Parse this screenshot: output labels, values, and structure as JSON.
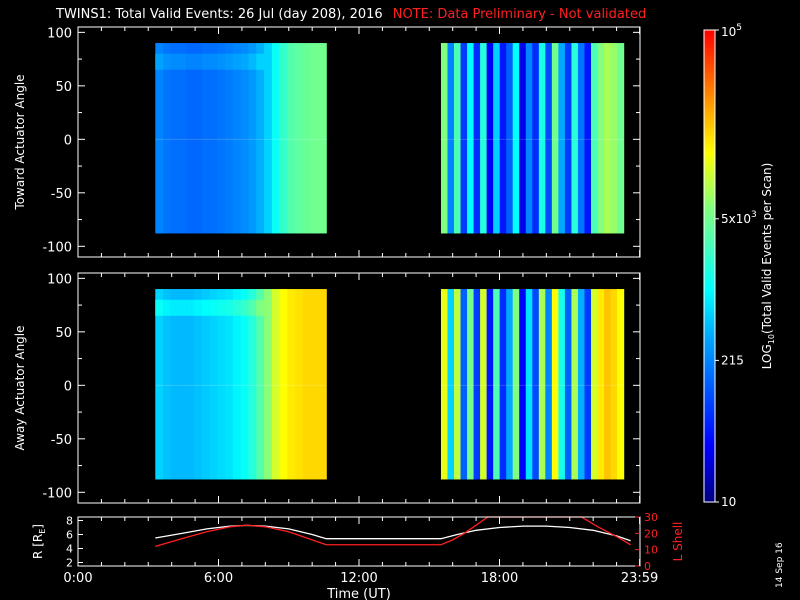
{
  "header": {
    "title": "TWINS1: Total Valid Events: 26 Jul (day 208), 2016",
    "note": "NOTE: Data Preliminary - Not validated"
  },
  "stamp": "14 Sep 16",
  "chart_data": [
    {
      "type": "heatmap",
      "name": "toward",
      "ylabel": "Toward Actuator Angle",
      "ylim": [
        -110,
        105
      ],
      "yticks": [
        100,
        50,
        0,
        -50,
        -100
      ],
      "angle_range": [
        -88,
        90
      ],
      "blocks": [
        {
          "start_hour": 3.3,
          "end_hour": 10.6,
          "levels": [
            0.3,
            0.28,
            0.27,
            0.27,
            0.26,
            0.26,
            0.27,
            0.27,
            0.28,
            0.29,
            0.3,
            0.31,
            0.33,
            0.36,
            0.4,
            0.46,
            0.52,
            0.56,
            0.58,
            0.59,
            0.6,
            0.6
          ],
          "top_band_boost": 0.04
        },
        {
          "start_hour": 15.5,
          "end_hour": 23.3,
          "levels": [
            0.62,
            0.3,
            0.55,
            0.2,
            0.45,
            0.18,
            0.5,
            0.12,
            0.4,
            0.15,
            0.25,
            0.45,
            0.1,
            0.3,
            0.18,
            0.48,
            0.22,
            0.6,
            0.35,
            0.2,
            0.5,
            0.28,
            0.15,
            0.55,
            0.62,
            0.66,
            0.64,
            0.6
          ],
          "top_band_boost": 0.0
        }
      ]
    },
    {
      "type": "heatmap",
      "name": "away",
      "ylabel": "Away Actuator Angle",
      "ylim": [
        -110,
        105
      ],
      "yticks": [
        100,
        50,
        0,
        -50,
        -100
      ],
      "angle_range": [
        -88,
        90
      ],
      "blocks": [
        {
          "start_hour": 3.3,
          "end_hour": 10.6,
          "levels": [
            0.4,
            0.38,
            0.37,
            0.37,
            0.37,
            0.38,
            0.39,
            0.4,
            0.41,
            0.42,
            0.44,
            0.46,
            0.5,
            0.56,
            0.63,
            0.7,
            0.74,
            0.76,
            0.77,
            0.78,
            0.78,
            0.78
          ],
          "top_band_boost": 0.06
        },
        {
          "start_hour": 15.5,
          "end_hour": 23.3,
          "levels": [
            0.72,
            0.4,
            0.68,
            0.25,
            0.6,
            0.2,
            0.7,
            0.15,
            0.55,
            0.18,
            0.35,
            0.62,
            0.12,
            0.42,
            0.22,
            0.66,
            0.3,
            0.74,
            0.48,
            0.25,
            0.66,
            0.36,
            0.2,
            0.7,
            0.76,
            0.8,
            0.78,
            0.74
          ],
          "top_band_boost": 0.0
        }
      ]
    },
    {
      "type": "line",
      "name": "orbit",
      "xlabel": "Time (UT)",
      "x_tick_labels": [
        "0:00",
        "6:00",
        "12:00",
        "18:00",
        "23:59"
      ],
      "x_tick_hours": [
        0,
        6,
        12,
        18,
        23.983
      ],
      "left_axis": {
        "label": "R [RE]",
        "label_main": "R [R",
        "label_sub": "E",
        "label_end": "]",
        "ylim": [
          1.5,
          8.5
        ],
        "ticks": [
          8,
          6,
          4,
          2
        ]
      },
      "right_axis": {
        "label": "L Shell",
        "ylim": [
          0,
          30
        ],
        "ticks": [
          30,
          20,
          10,
          0
        ]
      },
      "series": [
        {
          "axis": "left",
          "color": "#ffffff",
          "x": [
            3.3,
            4.5,
            5.5,
            6.5,
            7.2,
            8.0,
            9.0,
            10.0,
            10.6,
            15.5,
            16.2,
            17.0,
            18.0,
            19.0,
            20.0,
            21.0,
            22.0,
            23.0,
            23.6
          ],
          "y": [
            5.5,
            6.2,
            6.8,
            7.2,
            7.3,
            7.2,
            6.8,
            6.0,
            5.4,
            5.4,
            6.0,
            6.6,
            7.0,
            7.2,
            7.2,
            7.0,
            6.6,
            5.8,
            5.1
          ]
        },
        {
          "axis": "right",
          "color": "#ff2020",
          "x": [
            3.3,
            4.5,
            5.5,
            6.5,
            7.2,
            8.0,
            9.0,
            10.0,
            10.6,
            15.5,
            16.0,
            16.5,
            17.0,
            17.5,
            21.5,
            22.2,
            23.0,
            23.6
          ],
          "y": [
            12,
            17,
            21,
            24,
            25,
            24,
            21,
            16,
            13,
            13,
            16,
            20,
            25,
            30,
            30,
            24,
            18,
            13
          ]
        }
      ]
    }
  ],
  "colorbar": {
    "label": "LOG10(Total Valid Events per Scan)",
    "label_main": "LOG",
    "label_sub": "10",
    "label_end": "(Total Valid Events per Scan)",
    "ticks": [
      {
        "fraction": 1.0,
        "base": "10",
        "exp": "5",
        "text": "10^5"
      },
      {
        "fraction": 0.6,
        "base": "5x10",
        "exp": "3",
        "text": "5x10^3"
      },
      {
        "fraction": 0.3,
        "base": "215",
        "exp": "",
        "text": "215"
      },
      {
        "fraction": 0.0,
        "base": "10",
        "exp": "",
        "text": "10"
      }
    ]
  }
}
